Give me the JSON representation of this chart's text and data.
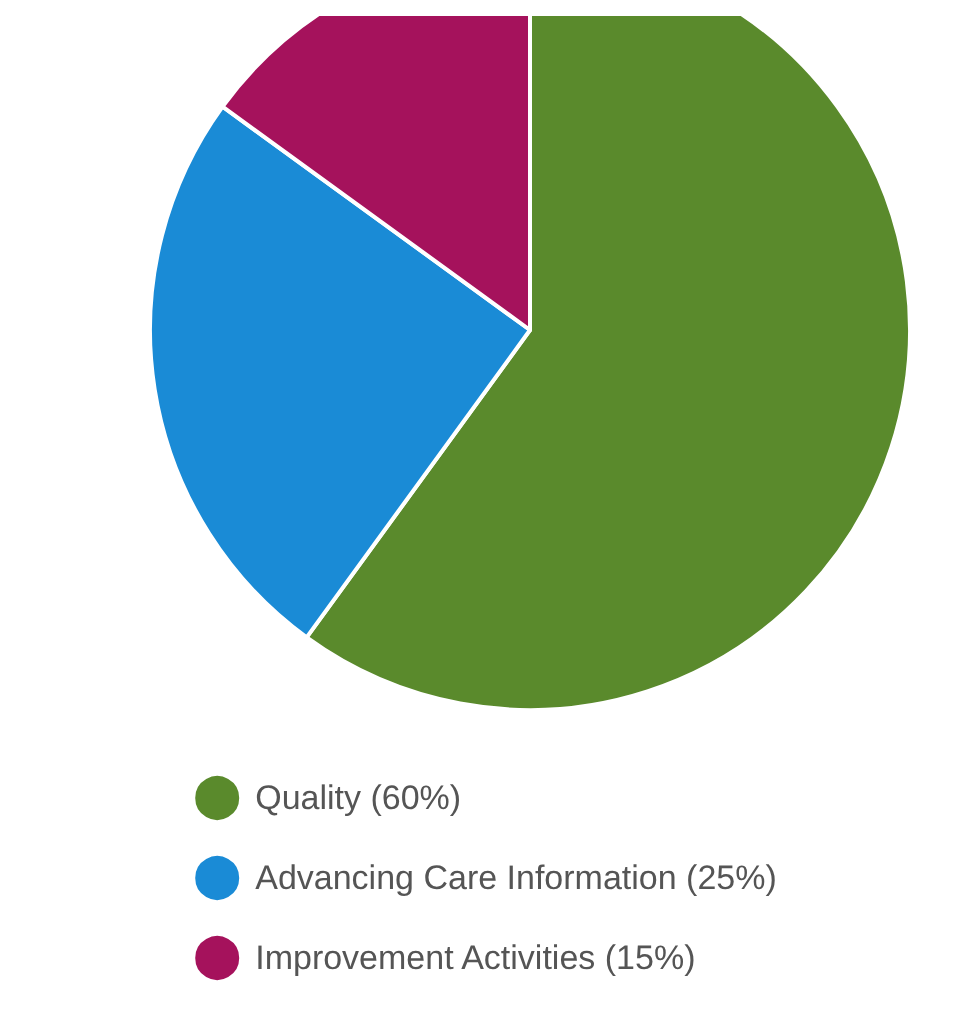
{
  "chart_data": {
    "type": "pie",
    "categories": [
      "Quality (60%)",
      "Advancing Care Information (25%)",
      "Improvement Activities (15%)"
    ],
    "values": [
      60,
      25,
      15
    ],
    "colors": [
      "#5a8a2c",
      "#1a8bd6",
      "#a5125c"
    ],
    "legend": "bottom"
  }
}
